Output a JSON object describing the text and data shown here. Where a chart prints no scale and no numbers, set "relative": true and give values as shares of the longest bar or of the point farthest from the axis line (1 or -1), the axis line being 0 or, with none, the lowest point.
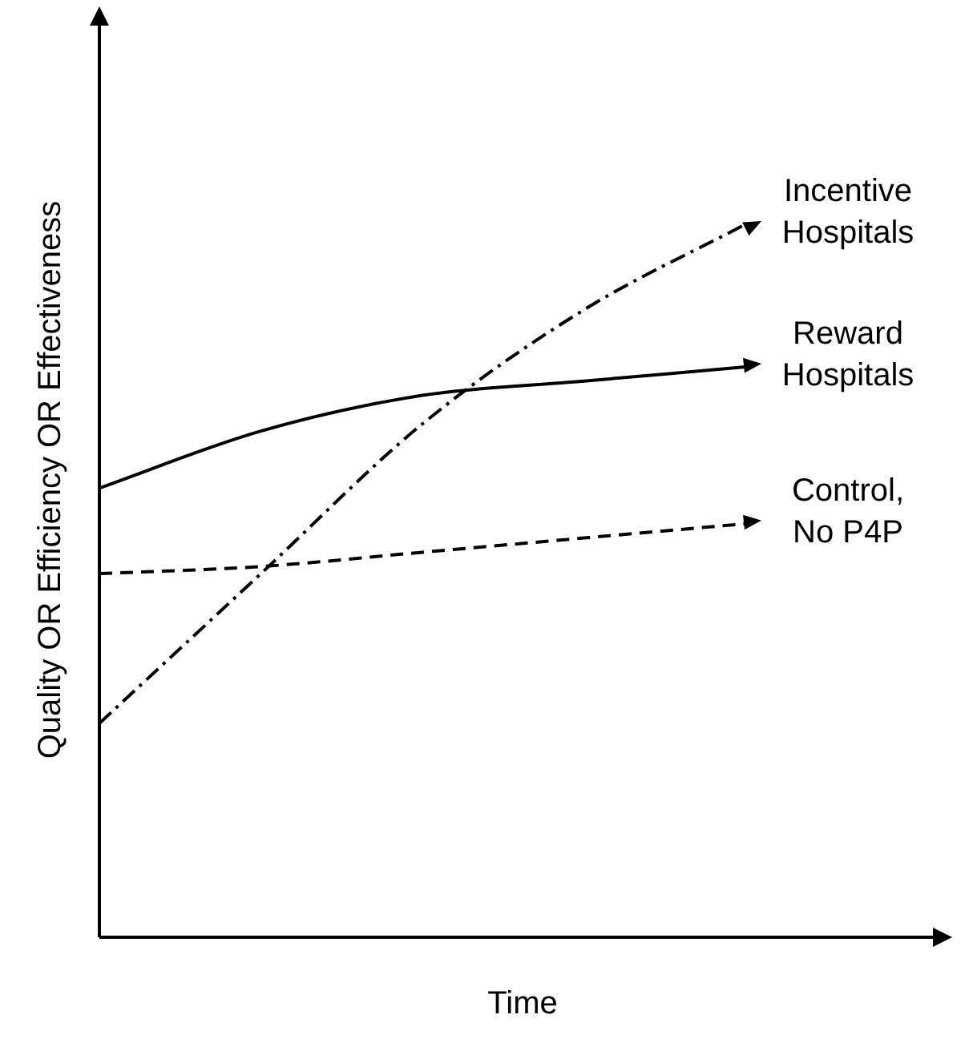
{
  "chart_data": {
    "type": "line",
    "relative": true,
    "xlabel": "Time",
    "ylabel": "Quality OR Efficiency OR Effectiveness",
    "categories": [
      null,
      null,
      null,
      null,
      null
    ],
    "legend": false,
    "marker": "none",
    "series": [
      {
        "name": "Incentive Hospitals",
        "color": "#000000",
        "line_style": "dashdot",
        "values": [
          0.3,
          0.51,
          0.72,
          0.88,
          1
        ]
      },
      {
        "name": "Reward Hospitals",
        "color": "#000000",
        "line_style": "solid",
        "values": [
          0.63,
          0.71,
          0.76,
          0.78,
          0.8
        ]
      },
      {
        "name": "Control, No P4P",
        "color": "#000000",
        "line_style": "dashed",
        "values": [
          0.51,
          0.52,
          0.54,
          0.56,
          0.58
        ]
      }
    ]
  }
}
